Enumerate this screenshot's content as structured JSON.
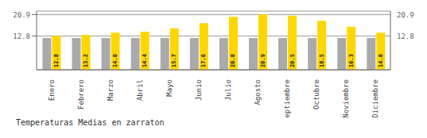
{
  "chart_data": {
    "type": "bar",
    "title": "Temperaturas Medias en zarraton",
    "categories": [
      "Enero",
      "Febrero",
      "Marzo",
      "Abril",
      "Mayo",
      "Junio",
      "Julio",
      "Agosto",
      "Septiembre",
      "Octubre",
      "Noviembre",
      "Diciembre"
    ],
    "series": [
      {
        "color": "#AAAAAA",
        "values": [
          12.0,
          12.0,
          12.0,
          12.0,
          12.0,
          12.0,
          12.0,
          12.0,
          12.0,
          12.0,
          12.0,
          12.0
        ]
      },
      {
        "color": "#FFD700",
        "values": [
          12.8,
          13.2,
          14.0,
          14.4,
          15.7,
          17.6,
          20.0,
          20.9,
          20.5,
          18.5,
          16.3,
          14.0
        ],
        "data_labels": true,
        "value_labels": [
          "12.8",
          "13.2",
          "14.0",
          "14.4",
          "15.7",
          "17.6",
          "20.0",
          "20.9",
          "20.5",
          "18.5",
          "16.3",
          "14.0"
        ]
      }
    ],
    "ylim": [
      0,
      22.2
    ],
    "yticks": [
      12.8,
      20.9
    ],
    "y2lim": [
      0,
      22.2
    ],
    "y2ticks": [
      12.8,
      20.9
    ],
    "grid": true
  }
}
